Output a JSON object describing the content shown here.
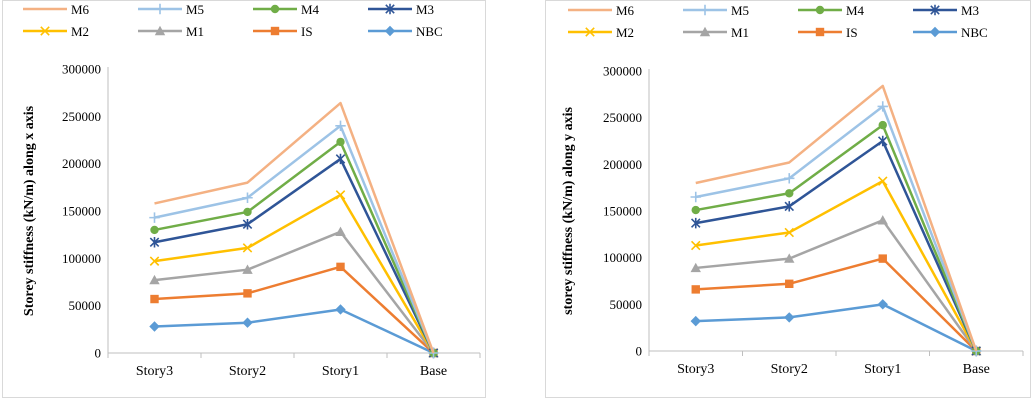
{
  "chart_data": [
    {
      "type": "line",
      "categories": [
        "Story3",
        "Story2",
        "Story1",
        "Base"
      ],
      "ylabel": "Storey stiffness (kN/m) along x axis",
      "ylim": [
        0,
        300000
      ],
      "yticks": [
        0,
        50000,
        100000,
        150000,
        200000,
        250000,
        300000
      ],
      "legend_position": "top",
      "grid": false,
      "series": [
        {
          "name": "M6",
          "color": "#F4B183",
          "marker": "none",
          "values": [
            158000,
            180000,
            264000,
            0
          ]
        },
        {
          "name": "M5",
          "color": "#9DC3E6",
          "marker": "plus",
          "values": [
            143000,
            164000,
            240000,
            0
          ]
        },
        {
          "name": "M4",
          "color": "#70AD47",
          "marker": "circle",
          "values": [
            130000,
            149000,
            223000,
            0
          ]
        },
        {
          "name": "M3",
          "color": "#2F5597",
          "marker": "star",
          "values": [
            117000,
            136000,
            205000,
            0
          ]
        },
        {
          "name": "M2",
          "color": "#FFC000",
          "marker": "x",
          "values": [
            97000,
            111000,
            167000,
            0
          ]
        },
        {
          "name": "M1",
          "color": "#A5A5A5",
          "marker": "triangle",
          "values": [
            77000,
            88000,
            128000,
            0
          ]
        },
        {
          "name": "IS",
          "color": "#ED7D31",
          "marker": "square",
          "values": [
            57000,
            63000,
            91000,
            0
          ]
        },
        {
          "name": "NBC",
          "color": "#5B9BD5",
          "marker": "diamond",
          "values": [
            28000,
            32000,
            46000,
            0
          ]
        }
      ]
    },
    {
      "type": "line",
      "categories": [
        "Story3",
        "Story2",
        "Story1",
        "Base"
      ],
      "ylabel": "storey stiffness (kN/m) along y axis",
      "ylim": [
        0,
        300000
      ],
      "yticks": [
        0,
        50000,
        100000,
        150000,
        200000,
        250000,
        300000
      ],
      "legend_position": "top",
      "grid": false,
      "series": [
        {
          "name": "M6",
          "color": "#F4B183",
          "marker": "none",
          "values": [
            180000,
            202000,
            284000,
            0
          ]
        },
        {
          "name": "M5",
          "color": "#9DC3E6",
          "marker": "plus",
          "values": [
            165000,
            185000,
            262000,
            0
          ]
        },
        {
          "name": "M4",
          "color": "#70AD47",
          "marker": "circle",
          "values": [
            151000,
            169000,
            242000,
            0
          ]
        },
        {
          "name": "M3",
          "color": "#2F5597",
          "marker": "star",
          "values": [
            137000,
            155000,
            225000,
            0
          ]
        },
        {
          "name": "M2",
          "color": "#FFC000",
          "marker": "x",
          "values": [
            113000,
            127000,
            182000,
            0
          ]
        },
        {
          "name": "M1",
          "color": "#A5A5A5",
          "marker": "triangle",
          "values": [
            89000,
            99000,
            140000,
            0
          ]
        },
        {
          "name": "IS",
          "color": "#ED7D31",
          "marker": "square",
          "values": [
            66000,
            72000,
            99000,
            0
          ]
        },
        {
          "name": "NBC",
          "color": "#5B9BD5",
          "marker": "diamond",
          "values": [
            32000,
            36000,
            50000,
            0
          ]
        }
      ]
    }
  ]
}
